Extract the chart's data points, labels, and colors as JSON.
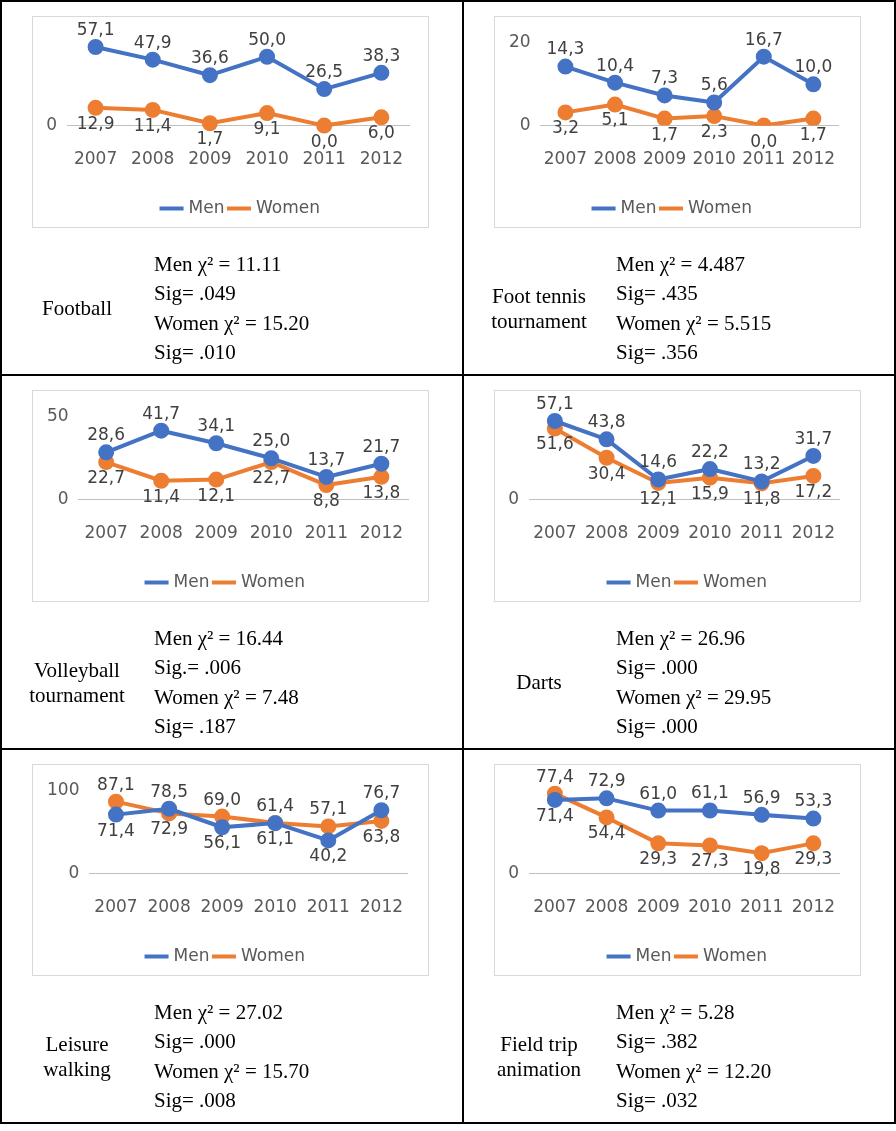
{
  "chart_data": [
    {
      "type": "line",
      "title": "Football",
      "categories": [
        "2007",
        "2008",
        "2009",
        "2010",
        "2011",
        "2012"
      ],
      "legend": "bottom",
      "marker": "circle",
      "series": [
        {
          "name": "Men",
          "color": "#4472c4",
          "values": [
            57.1,
            47.9,
            36.6,
            50.0,
            26.5,
            38.3
          ],
          "value_labels": [
            "57,1",
            "47,9",
            "36,6",
            "50,0",
            "26,5",
            "38,3"
          ]
        },
        {
          "name": "Women",
          "color": "#ed7d31",
          "values": [
            12.9,
            11.4,
            1.7,
            9.1,
            0.0,
            6.0
          ],
          "value_labels": [
            "12,9",
            "11,4",
            "1,7",
            "9,1",
            "0,0",
            "6,0"
          ]
        }
      ],
      "annotations": [
        "0",
        "Men χ² = 11.11",
        "Sig= .049",
        "Women χ² = 15.20",
        "Sig= .010"
      ]
    },
    {
      "type": "line",
      "title": "Foot tennis tournament",
      "categories": [
        "2007",
        "2008",
        "2009",
        "2010",
        "2011",
        "2012"
      ],
      "ylim": [
        0,
        20
      ],
      "yticks": [
        0,
        20
      ],
      "legend": "bottom",
      "marker": "circle",
      "series": [
        {
          "name": "Men",
          "color": "#4472c4",
          "values": [
            14.3,
            10.4,
            7.3,
            5.6,
            16.7,
            10.0
          ],
          "value_labels": [
            "14,3",
            "10,4",
            "7,3",
            "5,6",
            "16,7",
            "10,0"
          ]
        },
        {
          "name": "Women",
          "color": "#ed7d31",
          "values": [
            3.2,
            5.1,
            1.7,
            2.3,
            0.0,
            1.7
          ],
          "value_labels": [
            "3,2",
            "5,1",
            "1,7",
            "2,3",
            "0,0",
            "1,7"
          ]
        }
      ],
      "annotations": [
        "Men χ² = 4.487",
        "Sig= .435",
        "Women χ² = 5.515",
        "Sig= .356"
      ]
    },
    {
      "type": "line",
      "title": "Volleyball tournament",
      "categories": [
        "2007",
        "2008",
        "2009",
        "2010",
        "2011",
        "2012"
      ],
      "ylim": [
        0,
        50
      ],
      "yticks": [
        0,
        50
      ],
      "legend": "bottom",
      "marker": "circle",
      "series": [
        {
          "name": "Men",
          "color": "#4472c4",
          "values": [
            28.6,
            41.7,
            34.1,
            25.0,
            13.7,
            21.7
          ],
          "value_labels": [
            "28,6",
            "41,7",
            "34,1",
            "25,0",
            "13,7",
            "21,7"
          ]
        },
        {
          "name": "Women",
          "color": "#ed7d31",
          "values": [
            22.7,
            11.4,
            12.1,
            22.7,
            8.8,
            13.8
          ],
          "value_labels": [
            "22,7",
            "11,4",
            "12,1",
            "22,7",
            "8,8",
            "13,8"
          ]
        }
      ],
      "annotations": [
        "Men χ² = 16.44",
        "Sig.= .006",
        "Women χ² = 7.48",
        "Sig= .187"
      ]
    },
    {
      "type": "line",
      "title": "Darts",
      "categories": [
        "2007",
        "2008",
        "2009",
        "2010",
        "2011",
        "2012"
      ],
      "legend": "bottom",
      "marker": "circle",
      "series": [
        {
          "name": "Men",
          "color": "#4472c4",
          "values": [
            57.1,
            43.8,
            14.6,
            22.2,
            13.2,
            31.7
          ],
          "value_labels": [
            "57,1",
            "43,8",
            "14,6",
            "22,2",
            "13,2",
            "31,7"
          ]
        },
        {
          "name": "Women",
          "color": "#ed7d31",
          "values": [
            51.6,
            30.4,
            12.1,
            15.9,
            11.8,
            17.2
          ],
          "value_labels": [
            "51,6",
            "30,4",
            "12,1",
            "15,9",
            "11,8",
            "17,2"
          ]
        }
      ],
      "annotations": [
        "0",
        "Men χ² = 26.96",
        "Sig= .000",
        "Women χ² = 29.95",
        "Sig= .000"
      ]
    },
    {
      "type": "line",
      "title": "Leisure walking",
      "categories": [
        "2007",
        "2008",
        "2009",
        "2010",
        "2011",
        "2012"
      ],
      "ylim": [
        0,
        100
      ],
      "yticks": [
        0,
        100
      ],
      "legend": "bottom",
      "marker": "circle",
      "series": [
        {
          "name": "Men",
          "color": "#4472c4",
          "values": [
            71.4,
            78.5,
            56.1,
            61.1,
            40.2,
            76.7
          ],
          "value_labels": [
            "71,4",
            "78,5",
            "56,1",
            "61,1",
            "40,2",
            "76,7"
          ]
        },
        {
          "name": "Women",
          "color": "#ed7d31",
          "values": [
            87.1,
            72.9,
            69.0,
            61.4,
            57.1,
            63.8
          ],
          "value_labels": [
            "87,1",
            "72,9",
            "69,0",
            "61,4",
            "57,1",
            "63,8"
          ]
        }
      ],
      "annotations": [
        "Men χ² = 27.02",
        "Sig= .000",
        "Women χ² = 15.70",
        "Sig= .008"
      ]
    },
    {
      "type": "line",
      "title": "Field trip animation",
      "categories": [
        "2007",
        "2008",
        "2009",
        "2010",
        "2011",
        "2012"
      ],
      "legend": "bottom",
      "marker": "circle",
      "series": [
        {
          "name": "Men",
          "color": "#4472c4",
          "values": [
            71.4,
            72.9,
            61.0,
            61.1,
            56.9,
            53.3
          ],
          "value_labels": [
            "71,4",
            "72,9",
            "61,0",
            "61,1",
            "56,9",
            "53,3"
          ]
        },
        {
          "name": "Women",
          "color": "#ed7d31",
          "values": [
            77.4,
            54.4,
            29.3,
            27.3,
            19.8,
            29.3
          ],
          "value_labels": [
            "77,4",
            "54,4",
            "29,3",
            "27,3",
            "19,8",
            "29,3"
          ]
        }
      ],
      "annotations": [
        "0",
        "Men χ² = 5.28",
        "Sig= .382",
        "Women χ² = 12.20",
        "Sig= .032"
      ]
    }
  ]
}
